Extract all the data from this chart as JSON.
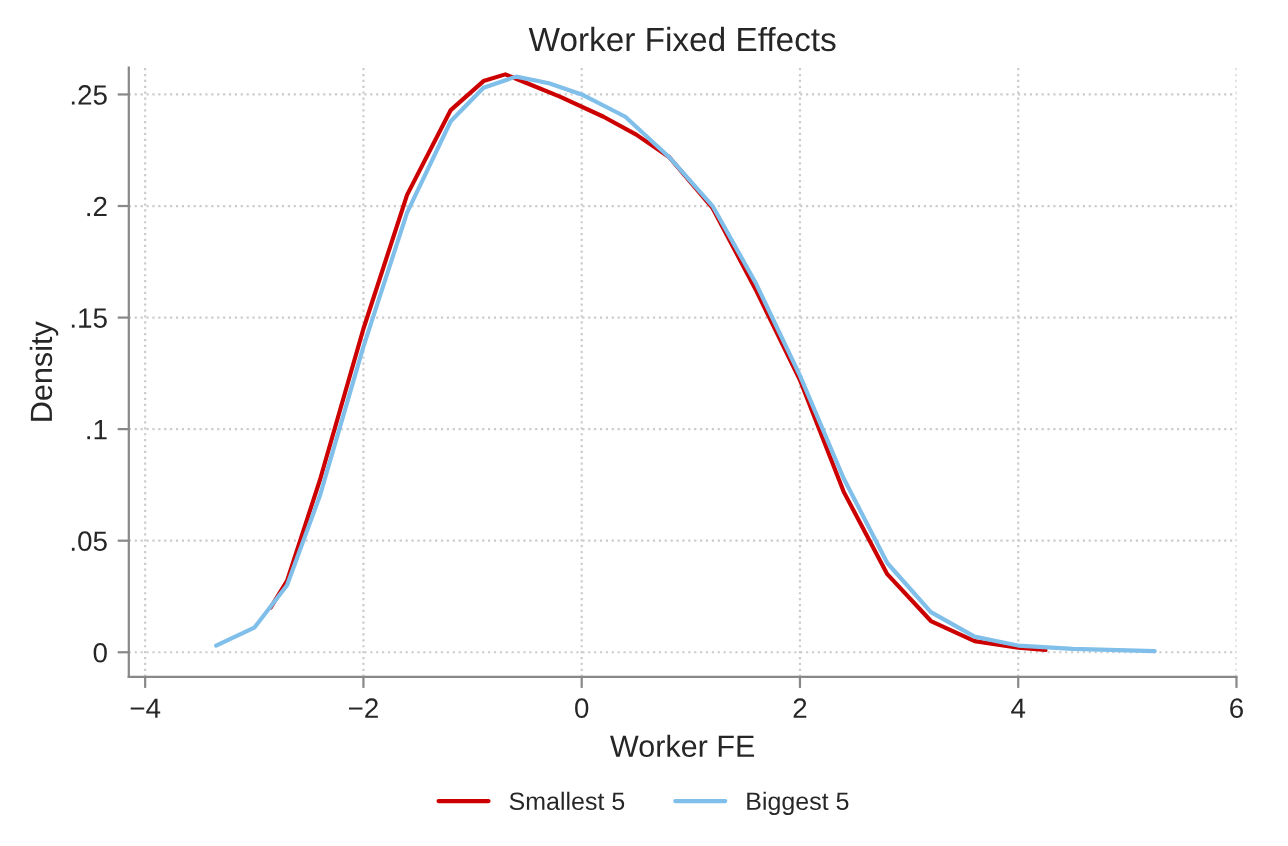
{
  "chart_data": {
    "type": "line",
    "title": "Worker Fixed Effects",
    "xlabel": "Worker FE",
    "ylabel": "Density",
    "xlim": [
      -4.15,
      6
    ],
    "ylim": [
      -0.011,
      0.262
    ],
    "xticks": [
      {
        "value": -4,
        "label": "−4"
      },
      {
        "value": -2,
        "label": "−2"
      },
      0,
      2,
      4,
      6
    ],
    "yticks": [
      0,
      {
        "value": 0.05,
        "label": ".05"
      },
      {
        "value": 0.1,
        "label": ".1"
      },
      {
        "value": 0.15,
        "label": ".15"
      },
      {
        "value": 0.2,
        "label": ".2"
      },
      {
        "value": 0.25,
        "label": ".25"
      }
    ],
    "grid": true,
    "legend": "bottom",
    "line_style": "solid",
    "marker": "none",
    "series": [
      {
        "name": "Smallest 5",
        "color": "#cc0000",
        "x": [
          -2.85,
          -2.7,
          -2.4,
          -2.0,
          -1.6,
          -1.2,
          -0.9,
          -0.7,
          -0.5,
          -0.2,
          0.2,
          0.5,
          0.8,
          1.2,
          1.6,
          2.0,
          2.4,
          2.8,
          3.2,
          3.6,
          4.0,
          4.25
        ],
        "values": [
          0.02,
          0.032,
          0.077,
          0.145,
          0.205,
          0.243,
          0.256,
          0.259,
          0.255,
          0.249,
          0.24,
          0.232,
          0.222,
          0.199,
          0.162,
          0.122,
          0.072,
          0.035,
          0.014,
          0.005,
          0.002,
          0.001
        ]
      },
      {
        "name": "Biggest 5",
        "color": "#7fbfea",
        "x": [
          -3.35,
          -3.0,
          -2.7,
          -2.4,
          -2.0,
          -1.6,
          -1.2,
          -0.9,
          -0.6,
          -0.3,
          0.0,
          0.4,
          0.8,
          1.2,
          1.6,
          2.0,
          2.4,
          2.8,
          3.2,
          3.6,
          4.0,
          4.5,
          5.25
        ],
        "values": [
          0.003,
          0.011,
          0.03,
          0.07,
          0.137,
          0.197,
          0.238,
          0.253,
          0.258,
          0.255,
          0.25,
          0.24,
          0.222,
          0.2,
          0.165,
          0.124,
          0.078,
          0.04,
          0.018,
          0.007,
          0.003,
          0.0015,
          0.0005
        ]
      }
    ]
  }
}
